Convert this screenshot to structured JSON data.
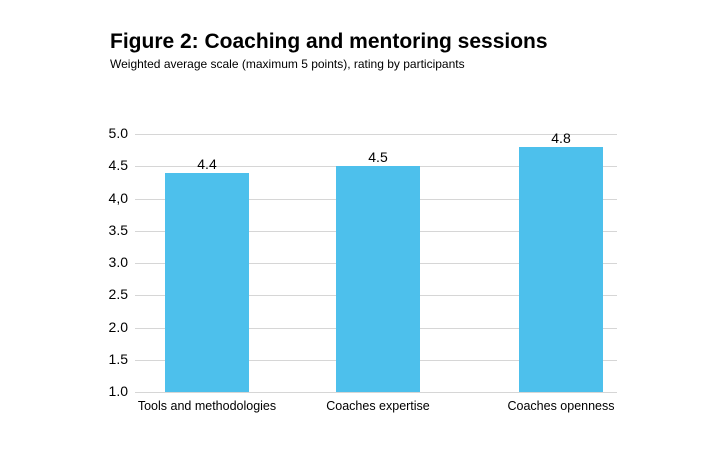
{
  "chart_data": {
    "type": "bar",
    "title": "Figure 2: Coaching and mentoring sessions",
    "subtitle": "Weighted average scale (maximum 5 points), rating by participants",
    "categories": [
      "Tools and methodologies",
      "Coaches expertise",
      "Coaches openness"
    ],
    "values": [
      4.4,
      4.5,
      4.8
    ],
    "value_labels": [
      "4.4",
      "4.5",
      "4.8"
    ],
    "xlabel": "",
    "ylabel": "",
    "ylim": [
      1.0,
      5.0
    ],
    "y_ticks": [
      {
        "value": 5.0,
        "label": "5.0"
      },
      {
        "value": 4.5,
        "label": "4.5"
      },
      {
        "value": 4.0,
        "label": "4,0"
      },
      {
        "value": 3.5,
        "label": "3.5"
      },
      {
        "value": 3.0,
        "label": "3.0"
      },
      {
        "value": 2.5,
        "label": "2.5"
      },
      {
        "value": 2.0,
        "label": "2.0"
      },
      {
        "value": 1.5,
        "label": "1.5"
      },
      {
        "value": 1.0,
        "label": "1.0"
      }
    ],
    "grid": true,
    "legend": "none",
    "bar_color": "#4dc0ec"
  }
}
